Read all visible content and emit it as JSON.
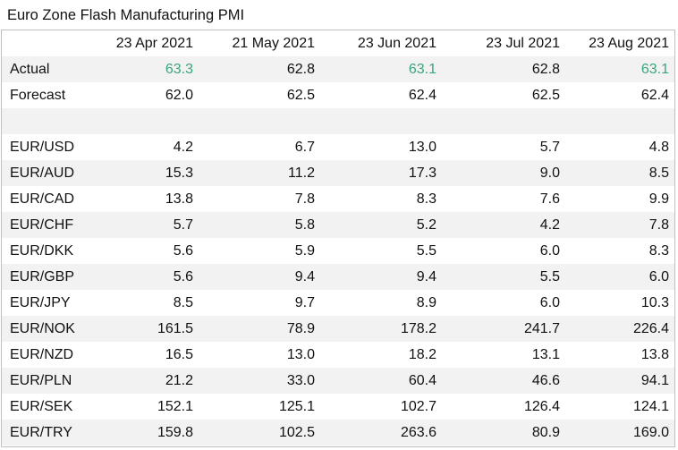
{
  "title": "Euro Zone Flash Manufacturing PMI",
  "table": {
    "corner": "",
    "columns": [
      "23 Apr 2021",
      "21 May 2021",
      "23 Jun 2021",
      "23 Jul 2021",
      "23 Aug 2021"
    ],
    "actual": {
      "label": "Actual",
      "values": [
        "63.3",
        "62.8",
        "63.1",
        "62.8",
        "63.1"
      ],
      "highlight": [
        true,
        false,
        true,
        false,
        true
      ]
    },
    "forecast": {
      "label": "Forecast",
      "values": [
        "62.0",
        "62.5",
        "62.4",
        "62.5",
        "62.4"
      ]
    },
    "pairs": [
      {
        "label": "EUR/USD",
        "values": [
          "4.2",
          "6.7",
          "13.0",
          "5.7",
          "4.8"
        ]
      },
      {
        "label": "EUR/AUD",
        "values": [
          "15.3",
          "11.2",
          "17.3",
          "9.0",
          "8.5"
        ]
      },
      {
        "label": "EUR/CAD",
        "values": [
          "13.8",
          "7.8",
          "8.3",
          "7.6",
          "9.9"
        ]
      },
      {
        "label": "EUR/CHF",
        "values": [
          "5.7",
          "5.8",
          "5.2",
          "4.2",
          "7.8"
        ]
      },
      {
        "label": "EUR/DKK",
        "values": [
          "5.6",
          "5.9",
          "5.5",
          "6.0",
          "8.3"
        ]
      },
      {
        "label": "EUR/GBP",
        "values": [
          "5.6",
          "9.4",
          "9.4",
          "5.5",
          "6.0"
        ]
      },
      {
        "label": "EUR/JPY",
        "values": [
          "8.5",
          "9.7",
          "8.9",
          "6.0",
          "10.3"
        ]
      },
      {
        "label": "EUR/NOK",
        "values": [
          "161.5",
          "78.9",
          "178.2",
          "241.7",
          "226.4"
        ]
      },
      {
        "label": "EUR/NZD",
        "values": [
          "16.5",
          "13.0",
          "18.2",
          "13.1",
          "13.8"
        ]
      },
      {
        "label": "EUR/PLN",
        "values": [
          "21.2",
          "33.0",
          "60.4",
          "46.6",
          "94.1"
        ]
      },
      {
        "label": "EUR/SEK",
        "values": [
          "152.1",
          "125.1",
          "102.7",
          "126.4",
          "124.1"
        ]
      },
      {
        "label": "EUR/TRY",
        "values": [
          "159.8",
          "102.5",
          "263.6",
          "80.9",
          "169.0"
        ]
      }
    ]
  },
  "colors": {
    "highlight": "#3aa57a",
    "band": "#f2f2f2",
    "border": "#bfbfbf"
  }
}
